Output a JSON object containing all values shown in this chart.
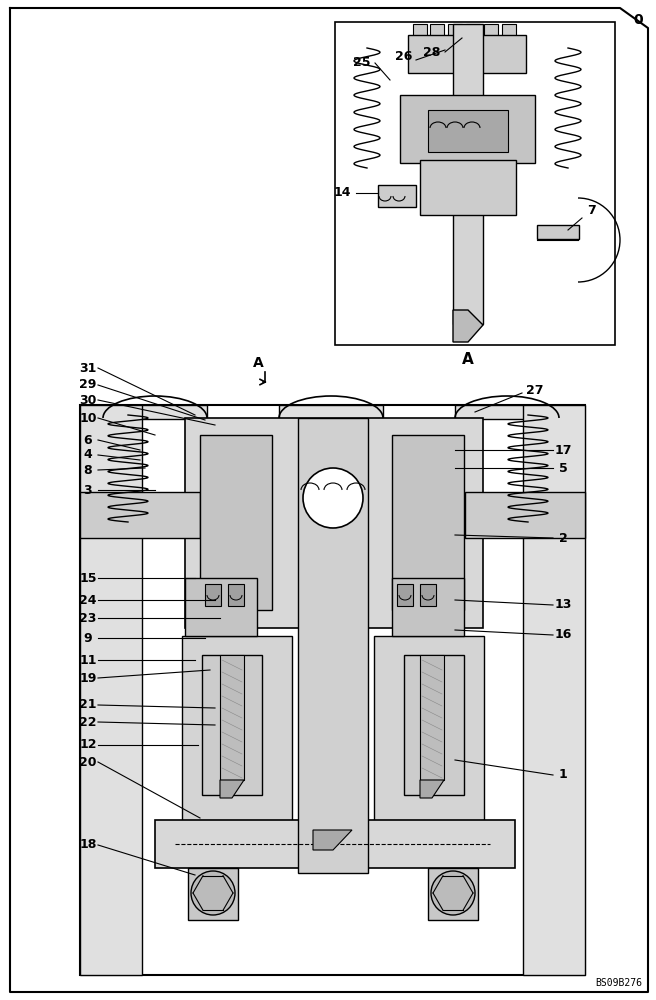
{
  "bg_color": "#ffffff",
  "line_color": "#000000",
  "figsize": [
    6.56,
    10.0
  ],
  "dpi": 100,
  "watermark": "BS09B276",
  "labels_left": [
    [
      "31",
      88,
      368
    ],
    [
      "29",
      88,
      385
    ],
    [
      "30",
      88,
      400
    ],
    [
      "10",
      88,
      418
    ],
    [
      "6",
      88,
      440
    ],
    [
      "4",
      88,
      455
    ],
    [
      "8",
      88,
      470
    ],
    [
      "3",
      88,
      490
    ],
    [
      "15",
      88,
      578
    ],
    [
      "24",
      88,
      600
    ],
    [
      "23",
      88,
      618
    ],
    [
      "9",
      88,
      638
    ],
    [
      "11",
      88,
      660
    ],
    [
      "19",
      88,
      678
    ],
    [
      "21",
      88,
      705
    ],
    [
      "22",
      88,
      722
    ],
    [
      "12",
      88,
      745
    ],
    [
      "20",
      88,
      762
    ],
    [
      "18",
      88,
      845
    ]
  ],
  "labels_right": [
    [
      "17",
      563,
      450
    ],
    [
      "5",
      563,
      468
    ],
    [
      "2",
      563,
      538
    ],
    [
      "13",
      563,
      605
    ],
    [
      "16",
      563,
      635
    ],
    [
      "1",
      563,
      775
    ]
  ],
  "leader_lines_left": [
    [
      "31",
      195,
      415
    ],
    [
      "29",
      205,
      420
    ],
    [
      "30",
      215,
      425
    ],
    [
      "10",
      155,
      435
    ],
    [
      "6",
      140,
      450
    ],
    [
      "4",
      140,
      460
    ],
    [
      "8",
      145,
      468
    ],
    [
      "3",
      155,
      490
    ],
    [
      "15",
      195,
      578
    ],
    [
      "24",
      215,
      600
    ],
    [
      "23",
      220,
      618
    ],
    [
      "9",
      205,
      638
    ],
    [
      "11",
      195,
      660
    ],
    [
      "19",
      210,
      670
    ],
    [
      "21",
      215,
      708
    ],
    [
      "22",
      215,
      725
    ],
    [
      "12",
      198,
      745
    ],
    [
      "20",
      200,
      818
    ],
    [
      "18",
      195,
      875
    ]
  ],
  "leader_lines_right": [
    [
      "17",
      455,
      450
    ],
    [
      "5",
      455,
      468
    ],
    [
      "2",
      455,
      535
    ],
    [
      "13",
      455,
      600
    ],
    [
      "16",
      455,
      630
    ],
    [
      "1",
      455,
      760
    ]
  ]
}
